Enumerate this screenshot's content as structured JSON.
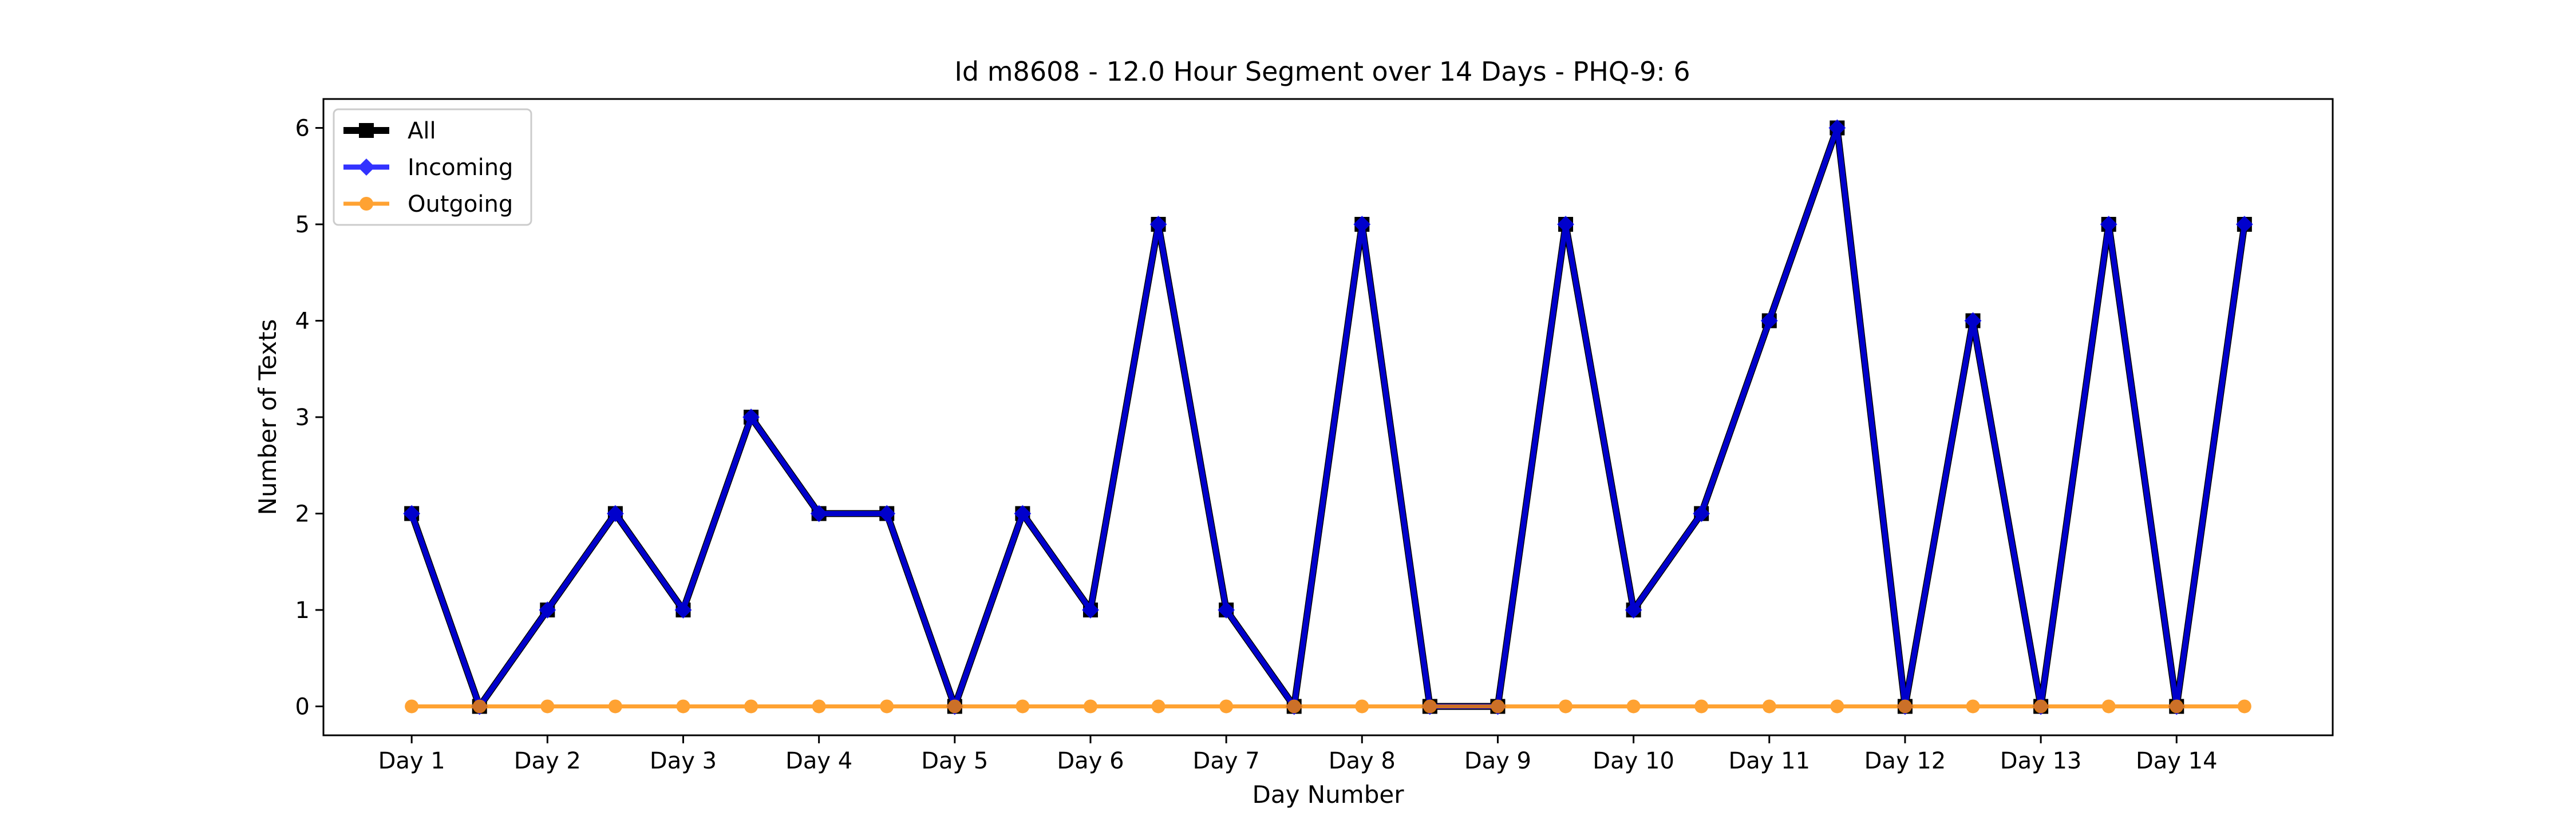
{
  "chart_data": {
    "type": "line",
    "title": "Id m8608 - 12.0 Hour Segment over 14 Days - PHQ-9: 6",
    "xlabel": "Day Number",
    "ylabel": "Number of Texts",
    "x_tick_labels": [
      "Day 1",
      "Day 2",
      "Day 3",
      "Day 4",
      "Day 5",
      "Day 6",
      "Day 7",
      "Day 8",
      "Day 9",
      "Day 10",
      "Day 11",
      "Day 12",
      "Day 13",
      "Day 14"
    ],
    "y_ticks": [
      0,
      1,
      2,
      3,
      4,
      5,
      6
    ],
    "ylim": [
      -0.3,
      6.3
    ],
    "xlim": [
      -0.65,
      14.15
    ],
    "x": [
      0,
      0.5,
      1,
      1.5,
      2,
      2.5,
      3,
      3.5,
      4,
      4.5,
      5,
      5.5,
      6,
      6.5,
      7,
      7.5,
      8,
      8.5,
      9,
      9.5,
      10,
      10.5,
      11,
      11.5,
      12,
      12.5,
      13,
      13.5
    ],
    "legend_position": "upper-left",
    "grid": false,
    "series": [
      {
        "name": "All",
        "color": "#000000",
        "marker": "square",
        "values": [
          2,
          0,
          1,
          2,
          1,
          3,
          2,
          2,
          0,
          2,
          1,
          5,
          1,
          0,
          5,
          0,
          0,
          5,
          1,
          2,
          4,
          6,
          0,
          4,
          0,
          5,
          0,
          5
        ]
      },
      {
        "name": "Incoming",
        "color": "#0000ff",
        "marker": "diamond",
        "values": [
          2,
          0,
          1,
          2,
          1,
          3,
          2,
          2,
          0,
          2,
          1,
          5,
          1,
          0,
          5,
          0,
          0,
          5,
          1,
          2,
          4,
          6,
          0,
          4,
          0,
          5,
          0,
          5
        ]
      },
      {
        "name": "Outgoing",
        "color": "#ff8c00",
        "marker": "circle",
        "values": [
          0,
          0,
          0,
          0,
          0,
          0,
          0,
          0,
          0,
          0,
          0,
          0,
          0,
          0,
          0,
          0,
          0,
          0,
          0,
          0,
          0,
          0,
          0,
          0,
          0,
          0,
          0,
          0
        ]
      }
    ]
  }
}
